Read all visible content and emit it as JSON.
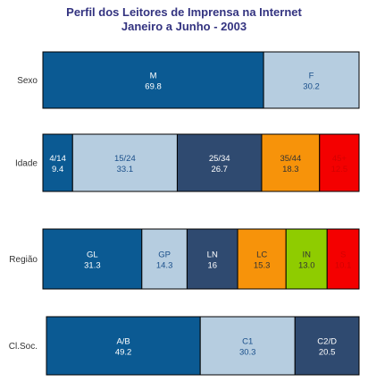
{
  "chart_title_line1": "Perfil dos Leitores de Imprensa na Internet",
  "chart_title_line2": "Janeiro a Junho - 2003",
  "colors": {
    "dark_blue": "#0b5a93",
    "light_blue": "#b6cde0",
    "slate": "#2f4a70",
    "orange": "#f7930a",
    "red": "#f40000",
    "green": "#8fcc00",
    "title": "#333380"
  },
  "chart_data": [
    {
      "type": "bar",
      "stacked": "100%",
      "row_label": "Sexo",
      "segments": [
        {
          "label": "M",
          "value": 69.8,
          "display": "69.8",
          "color": "#0b5a93",
          "text_color": "#ffffff"
        },
        {
          "label": "F",
          "value": 30.2,
          "display": "30.2",
          "color": "#b6cde0",
          "text_color": "#1a4f8a"
        }
      ]
    },
    {
      "type": "bar",
      "stacked": "100%",
      "row_label": "Idade",
      "segments": [
        {
          "label": "4/14",
          "value": 9.4,
          "display": "9.4",
          "color": "#0b5a93",
          "text_color": "#ffffff"
        },
        {
          "label": "15/24",
          "value": 33.1,
          "display": "33.1",
          "color": "#b6cde0",
          "text_color": "#1a4f8a"
        },
        {
          "label": "25/34",
          "value": 26.7,
          "display": "26.7",
          "color": "#2f4a70",
          "text_color": "#ffffff"
        },
        {
          "label": "35/44",
          "value": 18.3,
          "display": "18.3",
          "color": "#f7930a",
          "text_color": "#333333"
        },
        {
          "label": "45+",
          "value": 12.5,
          "display": "12.5",
          "color": "#f40000",
          "text_color": "#d40000"
        }
      ]
    },
    {
      "type": "bar",
      "stacked": "100%",
      "row_label": "Região",
      "segments": [
        {
          "label": "GL",
          "value": 31.3,
          "display": "31.3",
          "color": "#0b5a93",
          "text_color": "#ffffff"
        },
        {
          "label": "GP",
          "value": 14.3,
          "display": "14.3",
          "color": "#b6cde0",
          "text_color": "#1a4f8a"
        },
        {
          "label": "LN",
          "value": 16,
          "display": "16",
          "color": "#2f4a70",
          "text_color": "#ffffff"
        },
        {
          "label": "LC",
          "value": 15.3,
          "display": "15.3",
          "color": "#f7930a",
          "text_color": "#333333"
        },
        {
          "label": "IN",
          "value": 13.0,
          "display": "13.0",
          "color": "#8fcc00",
          "text_color": "#333333"
        },
        {
          "label": "S",
          "value": 10.1,
          "display": "10.1",
          "color": "#f40000",
          "text_color": "#d40000"
        }
      ]
    },
    {
      "type": "bar",
      "stacked": "100%",
      "row_label": "Cl.Soc.",
      "segments": [
        {
          "label": "A/B",
          "value": 49.2,
          "display": "49.2",
          "color": "#0b5a93",
          "text_color": "#ffffff"
        },
        {
          "label": "C1",
          "value": 30.3,
          "display": "30.3",
          "color": "#b6cde0",
          "text_color": "#1a4f8a"
        },
        {
          "label": "C2/D",
          "value": 20.5,
          "display": "20.5",
          "color": "#2f4a70",
          "text_color": "#ffffff"
        }
      ]
    }
  ]
}
